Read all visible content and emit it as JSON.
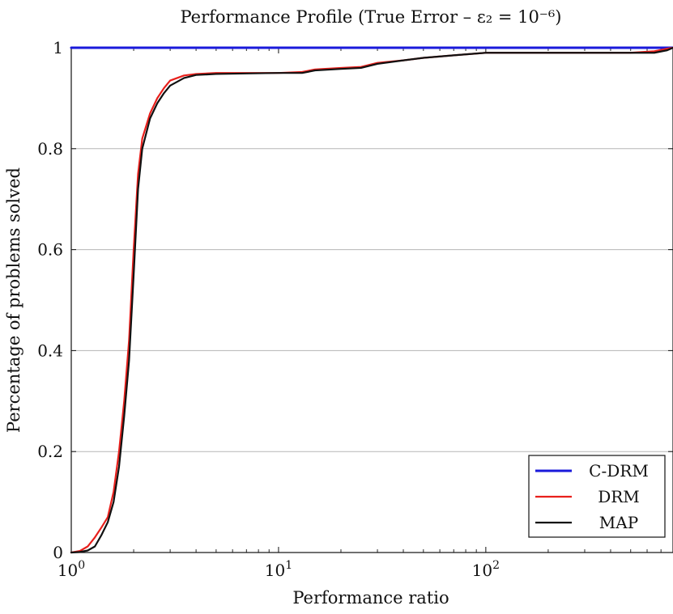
{
  "chart_data": {
    "type": "line",
    "title": "Performance Profile (True Error – ε₂ = 10⁻⁶)",
    "xlabel": "Performance ratio",
    "ylabel": "Percentage of problems solved",
    "x_scale": "log",
    "xlim": [
      1,
      800
    ],
    "ylim": [
      0,
      1
    ],
    "x_ticks": [
      {
        "base": "10",
        "exp": "0"
      },
      {
        "base": "10",
        "exp": "1"
      },
      {
        "base": "10",
        "exp": "2"
      }
    ],
    "y_ticks": [
      "0",
      "0.2",
      "0.4",
      "0.6",
      "0.8",
      "1"
    ],
    "grid": "horizontal",
    "legend_position": "bottom-right",
    "series": [
      {
        "name": "C-DRM",
        "color": "#1a1adb",
        "points": [
          [
            1,
            1.0
          ],
          [
            800,
            1.0
          ]
        ]
      },
      {
        "name": "DRM",
        "color": "#e8201c",
        "points": [
          [
            1.0,
            0.0
          ],
          [
            1.1,
            0.003
          ],
          [
            1.2,
            0.012
          ],
          [
            1.3,
            0.03
          ],
          [
            1.4,
            0.05
          ],
          [
            1.5,
            0.07
          ],
          [
            1.6,
            0.12
          ],
          [
            1.7,
            0.2
          ],
          [
            1.8,
            0.3
          ],
          [
            1.9,
            0.42
          ],
          [
            2.0,
            0.6
          ],
          [
            2.1,
            0.75
          ],
          [
            2.2,
            0.82
          ],
          [
            2.4,
            0.87
          ],
          [
            2.6,
            0.9
          ],
          [
            2.8,
            0.92
          ],
          [
            3.0,
            0.935
          ],
          [
            3.5,
            0.945
          ],
          [
            4.0,
            0.948
          ],
          [
            5,
            0.95
          ],
          [
            7,
            0.95
          ],
          [
            10,
            0.95
          ],
          [
            13,
            0.952
          ],
          [
            15,
            0.957
          ],
          [
            20,
            0.96
          ],
          [
            25,
            0.962
          ],
          [
            30,
            0.97
          ],
          [
            40,
            0.975
          ],
          [
            50,
            0.98
          ],
          [
            70,
            0.985
          ],
          [
            100,
            0.99
          ],
          [
            200,
            0.99
          ],
          [
            500,
            0.99
          ],
          [
            650,
            0.993
          ],
          [
            750,
            0.998
          ],
          [
            800,
            1.0
          ]
        ]
      },
      {
        "name": "MAP",
        "color": "#111111",
        "points": [
          [
            1.0,
            0.0
          ],
          [
            1.1,
            0.001
          ],
          [
            1.2,
            0.004
          ],
          [
            1.3,
            0.012
          ],
          [
            1.4,
            0.035
          ],
          [
            1.5,
            0.06
          ],
          [
            1.6,
            0.1
          ],
          [
            1.7,
            0.17
          ],
          [
            1.8,
            0.27
          ],
          [
            1.9,
            0.38
          ],
          [
            2.0,
            0.55
          ],
          [
            2.1,
            0.72
          ],
          [
            2.2,
            0.8
          ],
          [
            2.4,
            0.86
          ],
          [
            2.6,
            0.89
          ],
          [
            2.8,
            0.91
          ],
          [
            3.0,
            0.925
          ],
          [
            3.5,
            0.94
          ],
          [
            4.0,
            0.946
          ],
          [
            5,
            0.948
          ],
          [
            7,
            0.949
          ],
          [
            10,
            0.95
          ],
          [
            13,
            0.95
          ],
          [
            15,
            0.955
          ],
          [
            20,
            0.958
          ],
          [
            25,
            0.96
          ],
          [
            30,
            0.968
          ],
          [
            40,
            0.975
          ],
          [
            50,
            0.98
          ],
          [
            70,
            0.985
          ],
          [
            100,
            0.99
          ],
          [
            200,
            0.99
          ],
          [
            500,
            0.99
          ],
          [
            650,
            0.99
          ],
          [
            750,
            0.995
          ],
          [
            800,
            1.0
          ]
        ]
      }
    ]
  }
}
